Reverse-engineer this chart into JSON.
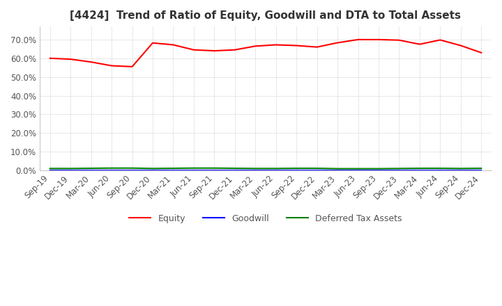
{
  "title": "[4424]  Trend of Ratio of Equity, Goodwill and DTA to Total Assets",
  "ylim": [
    0.0,
    0.77
  ],
  "yticks": [
    0.0,
    0.1,
    0.2,
    0.3,
    0.4,
    0.5,
    0.6,
    0.7
  ],
  "ytick_labels": [
    "0.0%",
    "10.0%",
    "20.0%",
    "30.0%",
    "40.0%",
    "50.0%",
    "60.0%",
    "70.0%"
  ],
  "x_labels": [
    "Sep-19",
    "Dec-19",
    "Mar-20",
    "Jun-20",
    "Sep-20",
    "Dec-20",
    "Mar-21",
    "Jun-21",
    "Sep-21",
    "Dec-21",
    "Mar-22",
    "Jun-22",
    "Sep-22",
    "Dec-22",
    "Mar-23",
    "Jun-23",
    "Sep-23",
    "Dec-23",
    "Mar-24",
    "Jun-24",
    "Sep-24",
    "Dec-24"
  ],
  "equity": [
    0.6,
    0.595,
    0.58,
    0.56,
    0.555,
    0.682,
    0.672,
    0.645,
    0.64,
    0.645,
    0.665,
    0.672,
    0.668,
    0.66,
    0.683,
    0.7,
    0.7,
    0.697,
    0.675,
    0.698,
    0.668,
    0.63
  ],
  "goodwill": [
    0.0,
    0.0,
    0.0,
    0.0,
    0.0,
    0.0,
    0.0,
    0.0,
    0.0,
    0.0,
    0.0,
    0.0,
    0.0,
    0.0,
    0.0,
    0.0,
    0.0,
    0.0,
    0.0,
    0.0,
    0.0,
    0.0
  ],
  "dta": [
    0.01,
    0.01,
    0.011,
    0.012,
    0.012,
    0.01,
    0.011,
    0.012,
    0.012,
    0.011,
    0.01,
    0.01,
    0.011,
    0.011,
    0.009,
    0.009,
    0.009,
    0.01,
    0.011,
    0.011,
    0.01,
    0.011
  ],
  "equity_color": "#ff0000",
  "goodwill_color": "#0000ff",
  "dta_color": "#008000",
  "background_color": "#ffffff",
  "grid_color": "#aaaaaa",
  "title_fontsize": 11,
  "tick_fontsize": 8.5,
  "legend_fontsize": 9
}
